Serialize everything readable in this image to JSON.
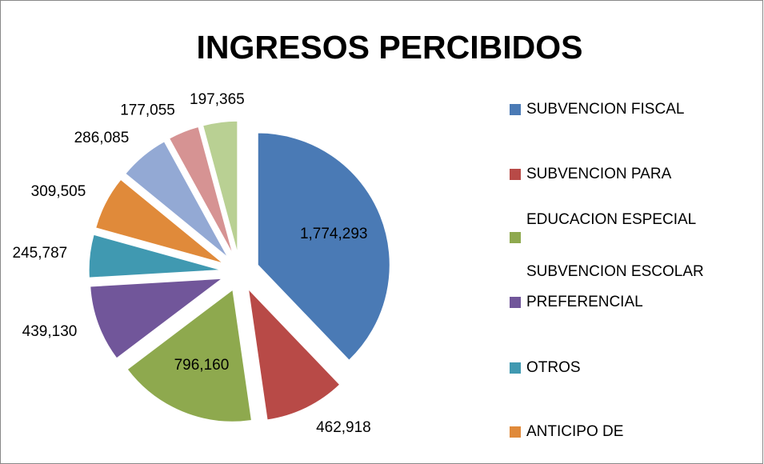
{
  "chart_data": {
    "type": "pie",
    "title": "INGRESOS PERCIBIDOS",
    "categories": [
      [
        "SUBVENCION FISCAL"
      ],
      [
        "SUBVENCION PARA"
      ],
      [
        "EDUCACION ESPECIAL"
      ],
      [
        "SUBVENCION ESCOLAR",
        "PREFERENCIAL"
      ],
      [
        "OTROS"
      ],
      [
        "ANTICIPO DE"
      ],
      null,
      null,
      null
    ],
    "values": [
      1774293,
      462918,
      796160,
      439130,
      245787,
      309505,
      286085,
      177055,
      197365
    ],
    "value_labels": [
      "1,774,293",
      "462,918",
      "796,160",
      "439,130",
      "245,787",
      "309,505",
      "286,085",
      "177,055",
      "197,365"
    ],
    "colors": [
      "#4a7ab5",
      "#b84a47",
      "#8ea94e",
      "#71569a",
      "#4099b1",
      "#e08a3a",
      "#93a9d4",
      "#d69393",
      "#b9d093"
    ],
    "legend": "right"
  }
}
